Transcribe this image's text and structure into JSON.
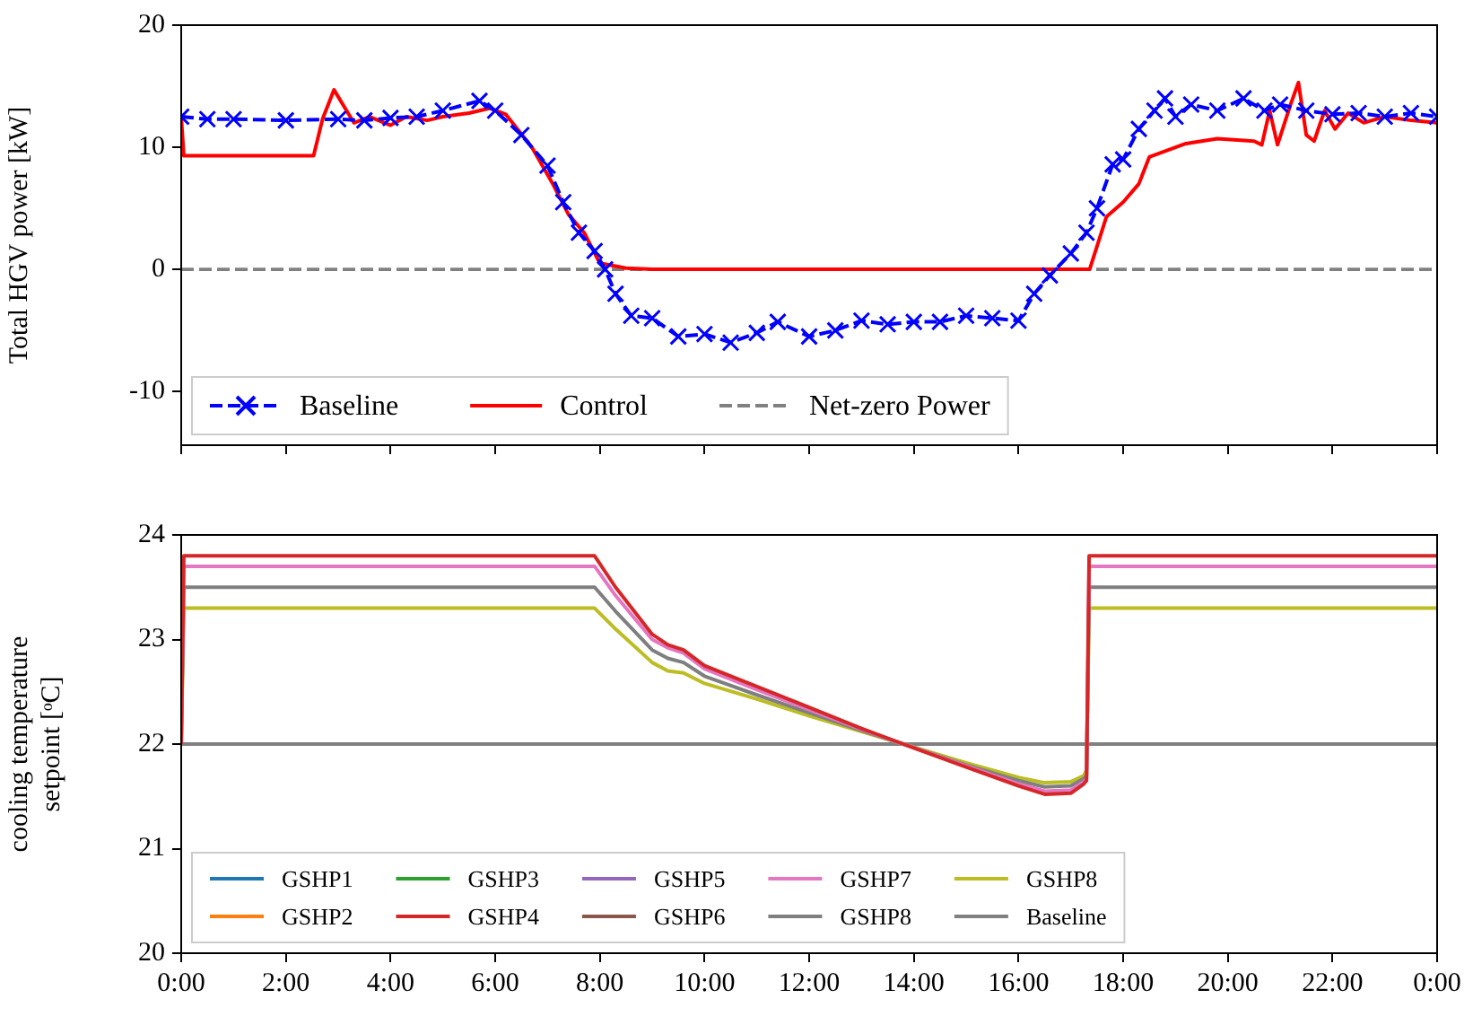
{
  "chart_data": [
    {
      "type": "line",
      "ylabel": "Total HGV power [kW]",
      "xlim": [
        0,
        24
      ],
      "xticks": [
        0,
        2,
        4,
        6,
        8,
        10,
        12,
        14,
        16,
        18,
        20,
        22,
        24
      ],
      "ylim": [
        -14.4,
        20
      ],
      "yticks": [
        -10,
        0,
        10,
        20
      ],
      "tick_labels": "y",
      "legend": "bottom left",
      "series": [
        {
          "name": "Baseline",
          "color": "#0000ff",
          "line_style": "dashed",
          "marker": "cross",
          "x": [
            0,
            0.5,
            1,
            2,
            3,
            3.5,
            4,
            4.5,
            5,
            5.7,
            6,
            6.5,
            7,
            7.3,
            7.6,
            7.9,
            8.1,
            8.3,
            8.6,
            9,
            9.5,
            10,
            10.5,
            11,
            11.4,
            12,
            12.5,
            13,
            13.5,
            14,
            14.5,
            15,
            15.5,
            16,
            16.3,
            16.6,
            17,
            17.3,
            17.5,
            17.8,
            18,
            18.3,
            18.6,
            18.8,
            19,
            19.3,
            19.8,
            20.3,
            20.7,
            21,
            21.5,
            22,
            22.5,
            23,
            23.5,
            24
          ],
          "values": [
            12.5,
            12.3,
            12.3,
            12.2,
            12.3,
            12.2,
            12.4,
            12.5,
            13,
            13.8,
            13,
            11,
            8.5,
            5.5,
            3,
            1.5,
            0,
            -2,
            -3.8,
            -4,
            -5.5,
            -5.3,
            -6,
            -5.2,
            -4.3,
            -5.5,
            -5,
            -4.2,
            -4.5,
            -4.3,
            -4.3,
            -3.8,
            -4,
            -4.2,
            -2,
            -0.5,
            1.3,
            3,
            5,
            8.6,
            9,
            11.5,
            13,
            14,
            12.5,
            13.5,
            13,
            14,
            13,
            13.5,
            13,
            12.7,
            12.8,
            12.5,
            12.8,
            12.5
          ]
        },
        {
          "name": "Control",
          "color": "#ff0000",
          "line_style": "solid",
          "marker": "none",
          "x": [
            0,
            0.05,
            2.53,
            2.7,
            2.92,
            3.3,
            3.6,
            4,
            4.3,
            4.7,
            5,
            5.5,
            5.9,
            6.2,
            6.7,
            7.1,
            7.4,
            7.7,
            8,
            8.5,
            9,
            17.36,
            17.68,
            18,
            18.3,
            18.5,
            19.2,
            19.8,
            20.5,
            20.65,
            20.8,
            20.95,
            21.2,
            21.35,
            21.5,
            21.65,
            21.85,
            22.05,
            22.3,
            22.6,
            23,
            23.5,
            24
          ],
          "values": [
            12.5,
            9.3,
            9.3,
            12.3,
            14.7,
            12,
            12.5,
            11.8,
            12.5,
            12.2,
            12.5,
            12.8,
            13.2,
            12.7,
            10,
            7,
            4.5,
            3,
            0.5,
            0.1,
            0,
            0,
            4.3,
            5.5,
            7,
            9.2,
            10.3,
            10.7,
            10.5,
            10.2,
            13,
            10.2,
            13.5,
            15.3,
            11,
            10.5,
            13,
            11.5,
            12.8,
            12,
            12.5,
            12.2,
            12
          ]
        }
      ],
      "ref_lines": [
        {
          "axis": "y",
          "value": 0,
          "label": "Net-zero Power",
          "color": "#808080",
          "line_style": "dashed"
        }
      ]
    },
    {
      "type": "line",
      "ylabel": "cooling temperature\nsetpoint [ᵒC]",
      "xlim": [
        0,
        24
      ],
      "xticks": [
        {
          "value": 0,
          "label": "0:00"
        },
        {
          "value": 2,
          "label": "2:00"
        },
        {
          "value": 4,
          "label": "4:00"
        },
        {
          "value": 6,
          "label": "6:00"
        },
        {
          "value": 8,
          "label": "8:00"
        },
        {
          "value": 10,
          "label": "10:00"
        },
        {
          "value": 12,
          "label": "12:00"
        },
        {
          "value": 14,
          "label": "14:00"
        },
        {
          "value": 16,
          "label": "16:00"
        },
        {
          "value": 18,
          "label": "18:00"
        },
        {
          "value": 20,
          "label": "20:00"
        },
        {
          "value": 22,
          "label": "22:00"
        },
        {
          "value": 24,
          "label": "0:00"
        }
      ],
      "ylim": [
        20,
        24
      ],
      "yticks": [
        20,
        21,
        22,
        23,
        24
      ],
      "legend": "bottom left",
      "x": [
        0,
        0.05,
        7.9,
        8.3,
        9,
        9.3,
        9.6,
        10,
        11,
        12,
        13,
        13.8,
        15,
        16,
        16.5,
        17,
        17.25,
        17.3,
        17.35,
        24
      ],
      "series": [
        {
          "name": "GSHP1",
          "color": "#1f77b4",
          "values": [
            null,
            null,
            null,
            null,
            null,
            null,
            null,
            null,
            null,
            null,
            null,
            null,
            null,
            null,
            null,
            null,
            null,
            null,
            null,
            null
          ]
        },
        {
          "name": "GSHP2",
          "color": "#ff7f0e",
          "values": [
            null,
            null,
            null,
            null,
            null,
            null,
            null,
            null,
            null,
            null,
            null,
            null,
            null,
            null,
            null,
            null,
            null,
            null,
            null,
            null
          ]
        },
        {
          "name": "GSHP3",
          "color": "#2ca02c",
          "values": [
            null,
            null,
            null,
            null,
            null,
            null,
            null,
            null,
            null,
            null,
            null,
            null,
            null,
            null,
            null,
            null,
            null,
            null,
            null,
            null
          ]
        },
        {
          "name": "GSHP4",
          "color": "#d62728",
          "values": [
            22,
            23.8,
            23.8,
            23.5,
            23.05,
            22.95,
            22.9,
            22.75,
            22.55,
            22.35,
            22.15,
            22.0,
            21.78,
            21.6,
            21.52,
            21.53,
            21.62,
            21.65,
            23.8,
            23.8
          ]
        },
        {
          "name": "GSHP5",
          "color": "#9467bd",
          "values": [
            null,
            null,
            null,
            null,
            null,
            null,
            null,
            null,
            null,
            null,
            null,
            null,
            null,
            null,
            null,
            null,
            null,
            null,
            null,
            null
          ]
        },
        {
          "name": "GSHP6",
          "color": "#8c564b",
          "values": [
            null,
            null,
            null,
            null,
            null,
            null,
            null,
            null,
            null,
            null,
            null,
            null,
            null,
            null,
            null,
            null,
            null,
            null,
            null,
            null
          ]
        },
        {
          "name": "GSHP7",
          "color": "#e377c2",
          "values": [
            22,
            23.7,
            23.7,
            23.42,
            23.0,
            22.92,
            22.87,
            22.72,
            22.52,
            22.33,
            22.14,
            22.0,
            21.79,
            21.62,
            21.55,
            21.56,
            21.64,
            21.67,
            23.7,
            23.7
          ]
        },
        {
          "name": "GSHP8",
          "color": "#7f7f7f",
          "values": [
            22,
            23.5,
            23.5,
            23.27,
            22.9,
            22.82,
            22.78,
            22.65,
            22.47,
            22.3,
            22.13,
            22.0,
            21.8,
            21.65,
            21.59,
            21.6,
            21.67,
            21.7,
            23.5,
            23.5
          ]
        },
        {
          "name": "GSHP8",
          "color": "#bcbd22",
          "values": [
            22,
            23.3,
            23.3,
            23.1,
            22.78,
            22.7,
            22.68,
            22.58,
            22.43,
            22.27,
            22.12,
            22.0,
            21.82,
            21.68,
            21.63,
            21.64,
            21.7,
            21.75,
            23.3,
            23.3
          ]
        },
        {
          "name": "Baseline",
          "color": "#808080",
          "x": [
            0,
            24
          ],
          "values": [
            22,
            22
          ]
        }
      ]
    }
  ]
}
